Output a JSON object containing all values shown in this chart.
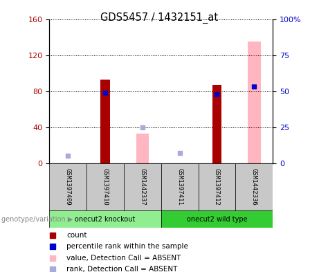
{
  "title": "GDS5457 / 1432151_at",
  "samples": [
    "GSM1397409",
    "GSM1397410",
    "GSM1442337",
    "GSM1397411",
    "GSM1397412",
    "GSM1442336"
  ],
  "group1_label": "onecut2 knockout",
  "group2_label": "onecut2 wild type",
  "group1_color": "#90EE90",
  "group2_color": "#33CC33",
  "count_values": [
    null,
    93,
    null,
    null,
    87,
    null
  ],
  "rank_values": [
    null,
    49,
    null,
    null,
    48,
    53
  ],
  "absent_value_values": [
    null,
    null,
    33,
    null,
    null,
    135
  ],
  "absent_rank_values": [
    5,
    null,
    25,
    7,
    null,
    null
  ],
  "left_ylim": [
    0,
    160
  ],
  "right_ylim": [
    0,
    100
  ],
  "left_yticks": [
    0,
    40,
    80,
    120,
    160
  ],
  "left_yticklabels": [
    "0",
    "40",
    "80",
    "120",
    "160"
  ],
  "right_yticks": [
    0,
    25,
    50,
    75,
    100
  ],
  "right_yticklabels": [
    "0",
    "25",
    "50",
    "75",
    "100%"
  ],
  "count_color": "#AA0000",
  "rank_color": "#0000CC",
  "absent_value_color": "#FFB6C1",
  "absent_rank_color": "#AAAADD",
  "background_color": "#FFFFFF",
  "sample_area_color": "#C8C8C8",
  "group_label": "genotype/variation"
}
